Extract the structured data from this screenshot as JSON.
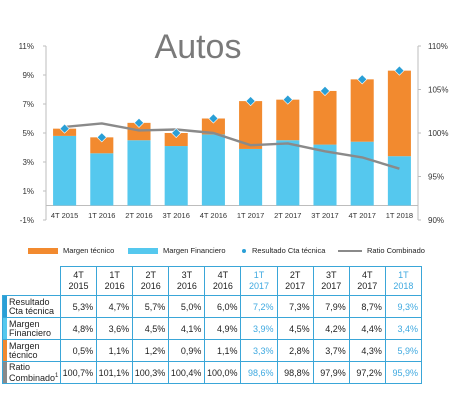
{
  "chart_data": {
    "type": "bar",
    "title": "Autos",
    "categories": [
      "4T 2015",
      "1T 2016",
      "2T 2016",
      "3T 2016",
      "4T 2016",
      "1T 2017",
      "2T 2017",
      "3T 2017",
      "4T 2017",
      "1T 2018"
    ],
    "series": [
      {
        "name": "Margen técnico",
        "kind": "bar",
        "stack": "a",
        "color": "#f28a2f",
        "values": [
          0.5,
          1.1,
          1.2,
          0.9,
          1.1,
          3.3,
          2.8,
          3.7,
          4.3,
          5.9
        ]
      },
      {
        "name": "Margen Financiero",
        "kind": "bar",
        "stack": "a",
        "color": "#55c8ee",
        "values": [
          4.8,
          3.6,
          4.5,
          4.1,
          4.9,
          3.9,
          4.5,
          4.2,
          4.4,
          3.4
        ]
      },
      {
        "name": "Resultado Cta técnica",
        "kind": "marker",
        "color": "#2a9fd6",
        "values": [
          5.3,
          4.7,
          5.7,
          5.0,
          6.0,
          7.2,
          7.3,
          7.9,
          8.7,
          9.3
        ]
      },
      {
        "name": "Ratio Combinado",
        "kind": "line",
        "axis": "right",
        "color": "#8a8a8a",
        "values": [
          100.7,
          101.1,
          100.3,
          100.4,
          100.0,
          98.6,
          98.8,
          97.9,
          97.2,
          95.9
        ]
      }
    ],
    "y_left": {
      "min": -1,
      "max": 11,
      "ticks": [
        -1,
        1,
        3,
        5,
        7,
        9,
        11
      ],
      "suffix": "%"
    },
    "y_right": {
      "min": 90,
      "max": 110,
      "ticks": [
        90,
        95,
        100,
        105,
        110
      ],
      "suffix": "%"
    },
    "grid": false,
    "legend_position": "bottom"
  },
  "table": {
    "headers": [
      [
        "4T",
        "2015"
      ],
      [
        "1T",
        "2016"
      ],
      [
        "2T",
        "2016"
      ],
      [
        "3T",
        "2016"
      ],
      [
        "4T",
        "2016"
      ],
      [
        "1T",
        "2017"
      ],
      [
        "2T",
        "2017"
      ],
      [
        "3T",
        "2017"
      ],
      [
        "4T",
        "2017"
      ],
      [
        "1T",
        "2018"
      ]
    ],
    "highlight_columns": [
      5,
      9
    ],
    "rows": [
      {
        "label": "Resultado Cta técnica",
        "label_sup": "",
        "mark_color": "#2a9fd6",
        "values": [
          "5,3%",
          "4,7%",
          "5,7%",
          "5,0%",
          "6,0%",
          "7,2%",
          "7,3%",
          "7,9%",
          "8,7%",
          "9,3%"
        ]
      },
      {
        "label": "Margen Financiero",
        "label_sup": "",
        "mark_color": "#55c8ee",
        "values": [
          "4,8%",
          "3,6%",
          "4,5%",
          "4,1%",
          "4,9%",
          "3,9%",
          "4,5%",
          "4,2%",
          "4,4%",
          "3,4%"
        ]
      },
      {
        "label": "Margen técnico",
        "label_sup": "",
        "mark_color": "#f28a2f",
        "values": [
          "0,5%",
          "1,1%",
          "1,2%",
          "0,9%",
          "1,1%",
          "3,3%",
          "2,8%",
          "3,7%",
          "4,3%",
          "5,9%"
        ]
      },
      {
        "label": "Ratio Combinado",
        "label_sup": "1",
        "mark_color": "#8a8a8a",
        "values": [
          "100,7%",
          "101,1%",
          "100,3%",
          "100,4%",
          "100,0%",
          "98,6%",
          "98,8%",
          "97,9%",
          "97,2%",
          "95,9%"
        ]
      }
    ]
  }
}
